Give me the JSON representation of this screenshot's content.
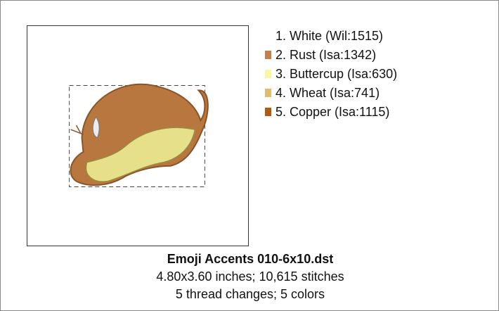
{
  "colors": [
    {
      "label": "1.  White (Wil:1515)",
      "color": "#ffffff"
    },
    {
      "label": "2.  Rust (Isa:1342)",
      "color": "#c4804a"
    },
    {
      "label": "3.  Buttercup (Isa:630)",
      "color": "#fbf7a0"
    },
    {
      "label": "4.  Wheat (Isa:741)",
      "color": "#e2bb6c"
    },
    {
      "label": "5.  Copper (Isa:1115)",
      "color": "#b25a12"
    }
  ],
  "caption": {
    "title": "Emoji Accents 010-6x10.dst",
    "size": "4.80x3.60 inches; 10,615 stitches",
    "threads": "5 thread changes; 5 colors"
  }
}
